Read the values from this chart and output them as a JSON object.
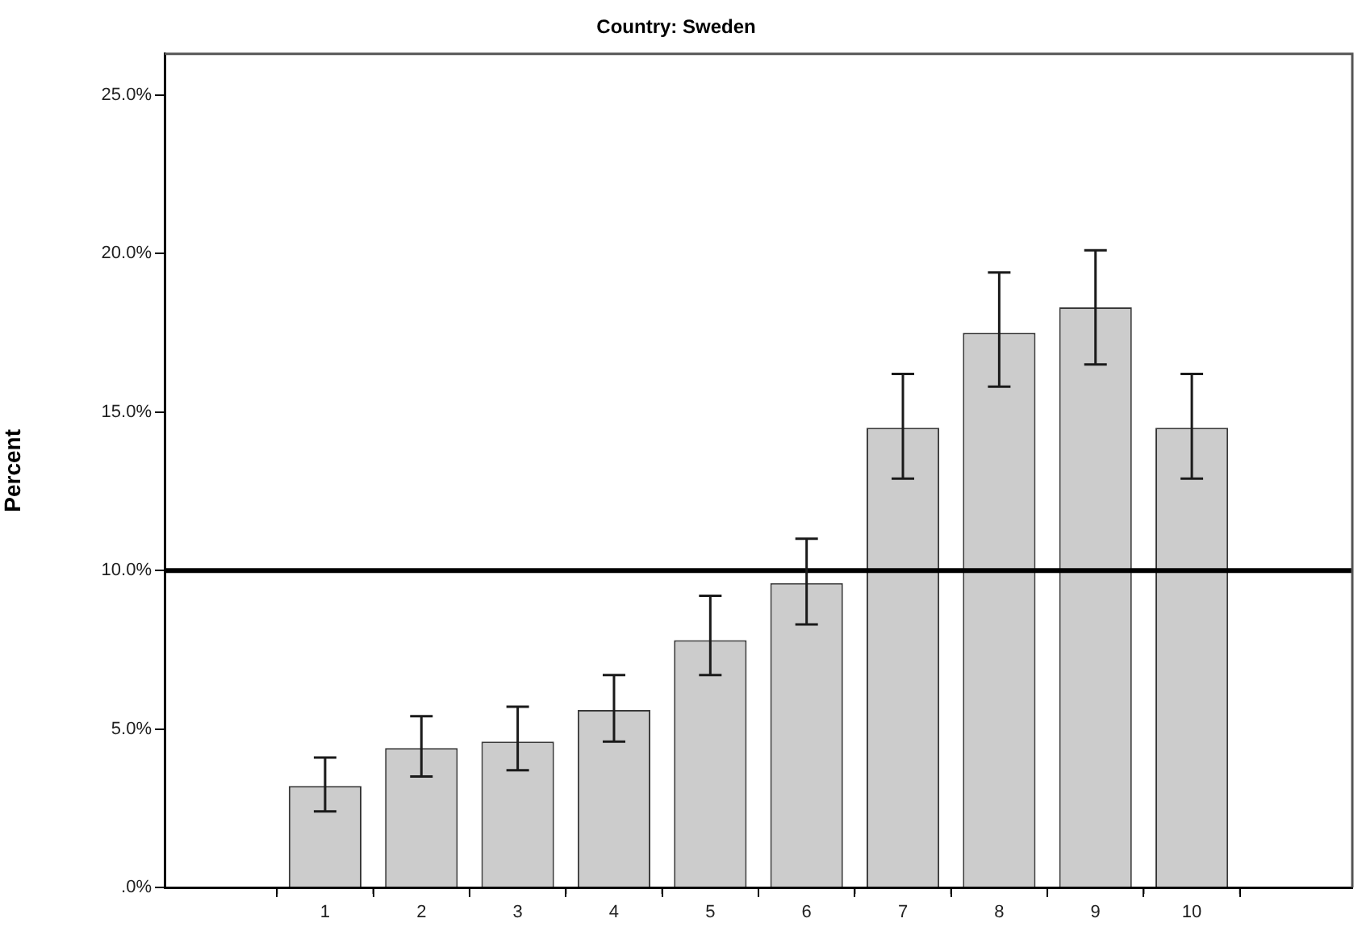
{
  "chart_data": {
    "type": "bar",
    "title": "Country: Sweden",
    "ylabel": "Percent",
    "categories": [
      "1",
      "2",
      "3",
      "4",
      "5",
      "6",
      "7",
      "8",
      "9",
      "10"
    ],
    "values": [
      3.2,
      4.4,
      4.6,
      5.6,
      7.8,
      9.6,
      14.5,
      17.5,
      18.3,
      14.5
    ],
    "errors": [
      [
        2.4,
        4.1
      ],
      [
        3.5,
        5.4
      ],
      [
        3.7,
        5.7
      ],
      [
        4.6,
        6.7
      ],
      [
        6.7,
        9.2
      ],
      [
        8.3,
        11.0
      ],
      [
        12.9,
        16.2
      ],
      [
        15.8,
        19.4
      ],
      [
        16.5,
        20.1
      ],
      [
        12.9,
        16.2
      ]
    ],
    "color": "#cccccc",
    "ylim": [
      0,
      26.3
    ],
    "yticks": [
      {
        "value": 0,
        "label": ".0%"
      },
      {
        "value": 5,
        "label": "5.0%"
      },
      {
        "value": 10,
        "label": "10.0%"
      },
      {
        "value": 15,
        "label": "15.0%"
      },
      {
        "value": 20,
        "label": "20.0%"
      },
      {
        "value": 25,
        "label": "25.0%"
      }
    ],
    "ref_lines": [
      {
        "axis": "y",
        "value": 10,
        "color": "#000000"
      }
    ],
    "grid": false,
    "legend": false
  }
}
